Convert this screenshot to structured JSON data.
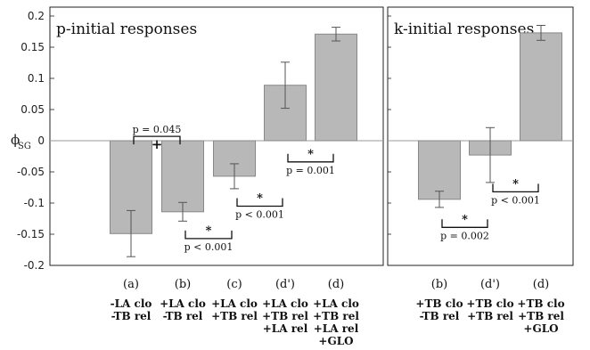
{
  "chart_data": {
    "type": "bar",
    "ylabel": "ϕSG",
    "ylabel_main": "ϕ",
    "ylabel_sub": "SG",
    "ylim": [
      -0.2,
      0.2
    ],
    "yticks": [
      "0.2",
      "0.15",
      "0.1",
      "0.05",
      "0",
      "-0.05",
      "-0.1",
      "-0.15",
      "-0.2"
    ],
    "ytick_values": [
      0.2,
      0.15,
      0.1,
      0.05,
      0,
      -0.05,
      -0.1,
      -0.15,
      -0.2
    ],
    "colors": {
      "bar": "#b8b8b8",
      "bar_stroke": "#888888",
      "axis": "#222222",
      "zero": "#999999"
    },
    "panels": [
      {
        "title": "p-initial responses",
        "categories": [
          "(a)",
          "(b)",
          "(c)",
          "(d')",
          "(d)"
        ],
        "condition_lines": [
          [
            "-LA clo",
            "-TB rel"
          ],
          [
            "+LA clo",
            "-TB rel"
          ],
          [
            "+LA clo",
            "+TB rel"
          ],
          [
            "+LA clo",
            "+TB rel",
            "+LA rel"
          ],
          [
            "+LA clo",
            "+TB rel",
            "+LA rel",
            "+GLO"
          ]
        ],
        "values": [
          -0.149,
          -0.114,
          -0.057,
          0.089,
          0.171
        ],
        "errors": [
          0.037,
          0.015,
          0.02,
          0.037,
          0.011
        ],
        "annotations": [
          {
            "between": [
              0,
              1
            ],
            "symbol": "+",
            "label": "p = 0.045",
            "y": 0.007,
            "side": "above"
          },
          {
            "between": [
              1,
              2
            ],
            "symbol": "*",
            "label": "p < 0.001",
            "y": -0.157,
            "side": "below"
          },
          {
            "between": [
              2,
              3
            ],
            "symbol": "*",
            "label": "p < 0.001",
            "y": -0.105,
            "side": "below"
          },
          {
            "between": [
              3,
              4
            ],
            "symbol": "*",
            "label": "p = 0.001",
            "y": -0.034,
            "side": "below"
          }
        ]
      },
      {
        "title": "k-initial responses",
        "categories": [
          "(b)",
          "(d')",
          "(d)"
        ],
        "condition_lines": [
          [
            "+TB clo",
            "-TB rel"
          ],
          [
            "+TB clo",
            "+TB rel"
          ],
          [
            "+TB clo",
            "+TB rel",
            "+GLO"
          ]
        ],
        "values": [
          -0.094,
          -0.023,
          0.173
        ],
        "errors": [
          0.013,
          0.044,
          0.012
        ],
        "annotations": [
          {
            "between": [
              0,
              1
            ],
            "symbol": "*",
            "label": "p = 0.002",
            "y": -0.139,
            "side": "below"
          },
          {
            "between": [
              1,
              2
            ],
            "symbol": "*",
            "label": "p < 0.001",
            "y": -0.082,
            "side": "below"
          }
        ]
      }
    ]
  }
}
